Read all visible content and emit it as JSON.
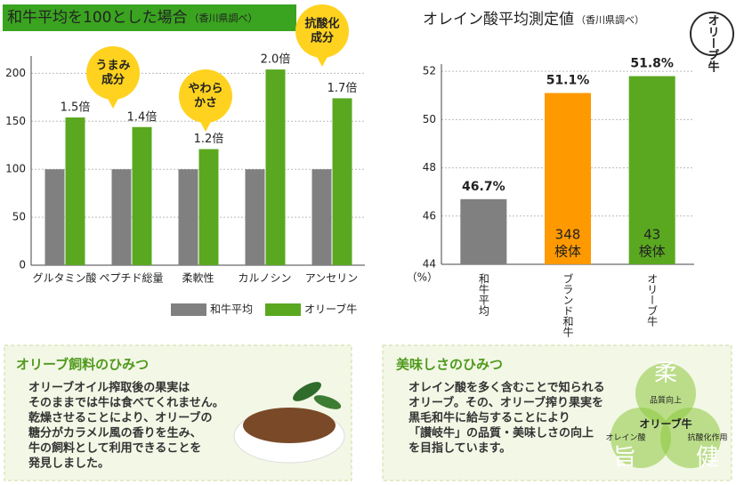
{
  "chart_data": [
    {
      "type": "bar",
      "title": "和牛平均を100とした場合",
      "subtitle": "（香川県調べ）",
      "categories": [
        "グルタミン酸",
        "ペプチド総量",
        "柔軟性",
        "カルノシン",
        "アンセリン"
      ],
      "series": [
        {
          "name": "和牛平均",
          "color": "#808080",
          "values": [
            100,
            100,
            100,
            100,
            100
          ]
        },
        {
          "name": "オリーブ牛",
          "color": "#5aa820",
          "values": [
            154,
            144,
            121,
            204,
            174
          ],
          "value_labels": [
            "1.5倍",
            "1.4倍",
            "1.2倍",
            "2.0倍",
            "1.7倍"
          ]
        }
      ],
      "ylim": [
        0,
        218
      ],
      "yticks": [
        0,
        50,
        100,
        150,
        200
      ],
      "grid": true,
      "annotations": [
        [
          "うまみ",
          "成分"
        ],
        [
          "やわら",
          "かさ"
        ],
        [
          "抗酸化",
          "成分"
        ]
      ]
    },
    {
      "type": "bar",
      "title": "オレイン酸平均測定値",
      "subtitle": "（香川県調べ）",
      "categories": [
        "和牛平均",
        "ブランド和牛",
        "オリーブ牛"
      ],
      "values": [
        46.7,
        51.1,
        51.8
      ],
      "value_labels": [
        "46.7%",
        "51.1%",
        "51.8%"
      ],
      "colors": [
        "#808080",
        "#ff9900",
        "#5aa820"
      ],
      "ylim": [
        44,
        52.3
      ],
      "yticks": [
        44,
        46,
        48,
        50,
        52
      ],
      "grid": true,
      "y_unit": "（%）",
      "bar_notes": [
        null,
        [
          "348",
          "検体"
        ],
        [
          "43",
          "検体"
        ]
      ]
    }
  ],
  "logo": "オリーブ牛",
  "panels": [
    {
      "heading": "オリーブ飼料のひみつ",
      "lines": [
        "オリーブオイル搾取後の果実は",
        "そのままでは牛は食べてくれません。",
        "乾燥させることにより、オリーブの",
        "糖分がカラメル風の香りを生み、",
        "牛の飼料として利用できることを",
        "発見しました。"
      ]
    },
    {
      "heading": "美味しさのひみつ",
      "lines": [
        "オレイン酸を多く含むことで知られる",
        "オリーブ。その、オリーブ搾り果実を",
        "黒毛和牛に給与することにより",
        "「讃岐牛」の品質・美味しさの向上",
        "を目指しています。"
      ],
      "diagram": {
        "labels": [
          "柔",
          "旨",
          "健"
        ],
        "sublabels": [
          "品質向上",
          "オレイン酸",
          "抗酸化作用"
        ],
        "center": "オリーブ牛"
      }
    }
  ]
}
